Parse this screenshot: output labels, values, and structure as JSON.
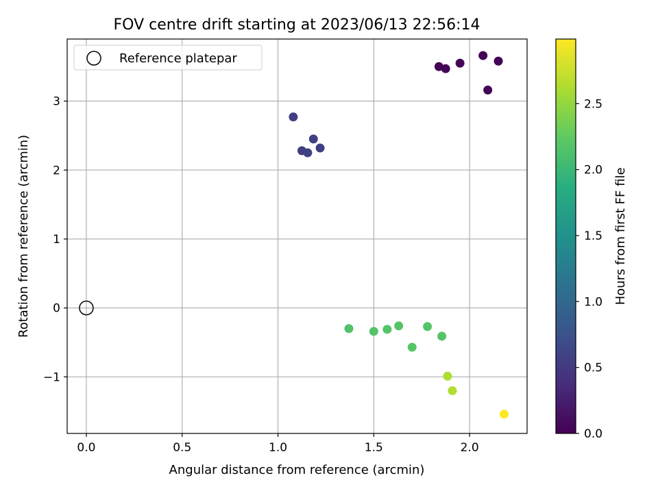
{
  "chart_data": {
    "type": "scatter",
    "title": "FOV centre drift starting at 2023/06/13 22:56:14",
    "xlabel": "Angular distance from reference (arcmin)",
    "ylabel": "Rotation from reference (arcmin)",
    "xlim": [
      -0.1,
      2.3
    ],
    "ylim": [
      -1.82,
      3.9
    ],
    "xticks": [
      0.0,
      0.5,
      1.0,
      1.5,
      2.0
    ],
    "xtick_labels": [
      "0.0",
      "0.5",
      "1.0",
      "1.5",
      "2.0"
    ],
    "yticks": [
      -1,
      0,
      1,
      2,
      3
    ],
    "ytick_labels": [
      "−1",
      "0",
      "1",
      "2",
      "3"
    ],
    "grid": true,
    "legend": {
      "position": "top-left",
      "entries": [
        "Reference platepar"
      ]
    },
    "reference_point": {
      "x": 0.0,
      "y": 0.0,
      "label": "Reference platepar"
    },
    "colorbar": {
      "label": "Hours from first FF file",
      "colormap": "viridis",
      "range": [
        0.0,
        2.99
      ],
      "ticks": [
        0.0,
        0.5,
        1.0,
        1.5,
        2.0,
        2.5
      ],
      "tick_labels": [
        "0.0",
        "0.5",
        "1.0",
        "1.5",
        "2.0",
        "2.5"
      ]
    },
    "points": [
      {
        "x": 1.84,
        "y": 3.5,
        "hours": 0.02
      },
      {
        "x": 1.875,
        "y": 3.47,
        "hours": 0.04
      },
      {
        "x": 1.95,
        "y": 3.55,
        "hours": 0.03
      },
      {
        "x": 2.07,
        "y": 3.66,
        "hours": 0.01
      },
      {
        "x": 2.15,
        "y": 3.58,
        "hours": 0.02
      },
      {
        "x": 2.095,
        "y": 3.16,
        "hours": 0.02
      },
      {
        "x": 1.08,
        "y": 2.77,
        "hours": 0.55
      },
      {
        "x": 1.185,
        "y": 2.45,
        "hours": 0.56
      },
      {
        "x": 1.125,
        "y": 2.28,
        "hours": 0.55
      },
      {
        "x": 1.155,
        "y": 2.25,
        "hours": 0.57
      },
      {
        "x": 1.22,
        "y": 2.32,
        "hours": 0.56
      },
      {
        "x": 1.37,
        "y": -0.3,
        "hours": 2.15
      },
      {
        "x": 1.5,
        "y": -0.34,
        "hours": 2.16
      },
      {
        "x": 1.57,
        "y": -0.31,
        "hours": 2.17
      },
      {
        "x": 1.63,
        "y": -0.26,
        "hours": 2.18
      },
      {
        "x": 1.7,
        "y": -0.57,
        "hours": 2.19
      },
      {
        "x": 1.78,
        "y": -0.27,
        "hours": 2.17
      },
      {
        "x": 1.855,
        "y": -0.41,
        "hours": 2.18
      },
      {
        "x": 1.885,
        "y": -0.99,
        "hours": 2.62
      },
      {
        "x": 1.91,
        "y": -1.2,
        "hours": 2.64
      },
      {
        "x": 2.18,
        "y": -1.54,
        "hours": 2.99
      }
    ]
  }
}
